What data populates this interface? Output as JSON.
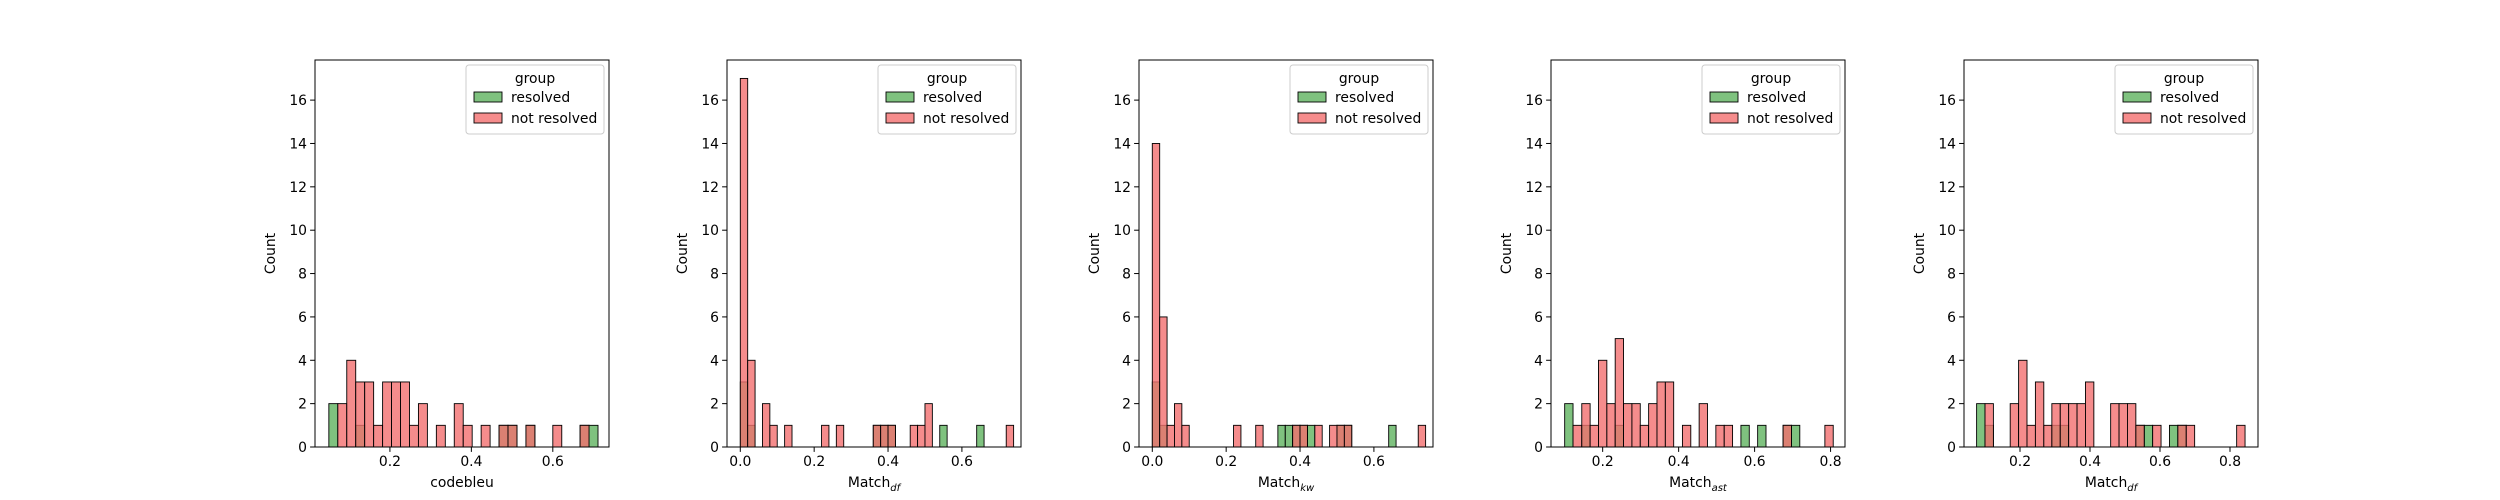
{
  "legend": {
    "title": "group",
    "entries": [
      {
        "name": "resolved",
        "color": "#5fb35f"
      },
      {
        "name": "not resolved",
        "color": "#f36f6f"
      }
    ]
  },
  "chart_data": [
    {
      "type": "bar",
      "xlabel": "codebleu",
      "xlabel_sub": "",
      "ylabel": "Count",
      "xlim": [
        0.016,
        0.738
      ],
      "ylim": [
        0,
        17.85
      ],
      "xticks": [
        0.2,
        0.4,
        0.6
      ],
      "yticks": [
        0,
        2,
        4,
        6,
        8,
        10,
        12,
        14,
        16
      ],
      "legend_position": "top-right",
      "series": [
        {
          "name": "resolved",
          "color": "#5fb35f",
          "bins": [
            [
              0.05,
              0.072,
              2
            ],
            [
              0.116,
              0.138,
              1
            ],
            [
              0.468,
              0.49,
              1
            ],
            [
              0.49,
              0.512,
              1
            ],
            [
              0.534,
              0.556,
              1
            ],
            [
              0.667,
              0.689,
              1
            ],
            [
              0.689,
              0.711,
              1
            ]
          ]
        },
        {
          "name": "not resolved",
          "color": "#f36f6f",
          "bins": [
            [
              0.072,
              0.094,
              2
            ],
            [
              0.094,
              0.116,
              4
            ],
            [
              0.116,
              0.138,
              3
            ],
            [
              0.138,
              0.16,
              3
            ],
            [
              0.16,
              0.182,
              1
            ],
            [
              0.182,
              0.204,
              3
            ],
            [
              0.204,
              0.226,
              3
            ],
            [
              0.226,
              0.248,
              3
            ],
            [
              0.248,
              0.27,
              1
            ],
            [
              0.27,
              0.292,
              2
            ],
            [
              0.314,
              0.336,
              1
            ],
            [
              0.358,
              0.38,
              2
            ],
            [
              0.38,
              0.402,
              1
            ],
            [
              0.424,
              0.446,
              1
            ],
            [
              0.468,
              0.49,
              1
            ],
            [
              0.49,
              0.512,
              1
            ],
            [
              0.534,
              0.556,
              1
            ],
            [
              0.6,
              0.622,
              1
            ],
            [
              0.667,
              0.689,
              1
            ]
          ]
        }
      ]
    },
    {
      "type": "bar",
      "xlabel": "Match",
      "xlabel_sub": "df",
      "ylabel": "Count",
      "xlim": [
        -0.036,
        0.76
      ],
      "ylim": [
        0,
        17.85
      ],
      "xticks": [
        0.0,
        0.2,
        0.4,
        0.6
      ],
      "yticks": [
        0,
        2,
        4,
        6,
        8,
        10,
        12,
        14,
        16
      ],
      "legend_position": "top-right",
      "series": [
        {
          "name": "resolved",
          "color": "#5fb35f",
          "bins": [
            [
              0.0,
              0.02,
              3
            ],
            [
              0.02,
              0.04,
              1
            ],
            [
              0.36,
              0.38,
              1
            ],
            [
              0.38,
              0.4,
              1
            ],
            [
              0.4,
              0.42,
              1
            ],
            [
              0.54,
              0.56,
              1
            ],
            [
              0.64,
              0.66,
              1
            ]
          ]
        },
        {
          "name": "not resolved",
          "color": "#f36f6f",
          "bins": [
            [
              0.0,
              0.02,
              17
            ],
            [
              0.02,
              0.04,
              4
            ],
            [
              0.06,
              0.08,
              2
            ],
            [
              0.08,
              0.1,
              1
            ],
            [
              0.12,
              0.14,
              1
            ],
            [
              0.22,
              0.24,
              1
            ],
            [
              0.26,
              0.28,
              1
            ],
            [
              0.36,
              0.38,
              1
            ],
            [
              0.38,
              0.4,
              1
            ],
            [
              0.4,
              0.42,
              1
            ],
            [
              0.46,
              0.48,
              1
            ],
            [
              0.48,
              0.5,
              1
            ],
            [
              0.5,
              0.52,
              2
            ],
            [
              0.72,
              0.74,
              1
            ]
          ]
        }
      ]
    },
    {
      "type": "bar",
      "xlabel": "Match",
      "xlabel_sub": "kw",
      "ylabel": "Count",
      "xlim": [
        -0.036,
        0.76
      ],
      "ylim": [
        0,
        17.85
      ],
      "xticks": [
        0.0,
        0.2,
        0.4,
        0.6
      ],
      "yticks": [
        0,
        2,
        4,
        6,
        8,
        10,
        12,
        14,
        16
      ],
      "legend_position": "top-right",
      "series": [
        {
          "name": "resolved",
          "color": "#5fb35f",
          "bins": [
            [
              0.0,
              0.02,
              3
            ],
            [
              0.02,
              0.04,
              1
            ],
            [
              0.34,
              0.36,
              1
            ],
            [
              0.36,
              0.38,
              1
            ],
            [
              0.38,
              0.4,
              1
            ],
            [
              0.4,
              0.42,
              1
            ],
            [
              0.42,
              0.44,
              1
            ],
            [
              0.5,
              0.52,
              1
            ],
            [
              0.52,
              0.54,
              1
            ],
            [
              0.64,
              0.66,
              1
            ]
          ]
        },
        {
          "name": "not resolved",
          "color": "#f36f6f",
          "bins": [
            [
              0.0,
              0.02,
              14
            ],
            [
              0.02,
              0.04,
              6
            ],
            [
              0.04,
              0.06,
              1
            ],
            [
              0.06,
              0.08,
              2
            ],
            [
              0.08,
              0.1,
              1
            ],
            [
              0.22,
              0.24,
              1
            ],
            [
              0.28,
              0.3,
              1
            ],
            [
              0.38,
              0.4,
              1
            ],
            [
              0.4,
              0.42,
              1
            ],
            [
              0.44,
              0.46,
              1
            ],
            [
              0.48,
              0.5,
              1
            ],
            [
              0.5,
              0.52,
              1
            ],
            [
              0.52,
              0.54,
              1
            ],
            [
              0.72,
              0.74,
              1
            ]
          ]
        }
      ]
    },
    {
      "type": "bar",
      "xlabel": "Match",
      "xlabel_sub": "ast",
      "ylabel": "Count",
      "xlim": [
        0.064,
        0.838
      ],
      "ylim": [
        0,
        17.85
      ],
      "xticks": [
        0.2,
        0.4,
        0.6,
        0.8
      ],
      "yticks": [
        0,
        2,
        4,
        6,
        8,
        10,
        12,
        14,
        16
      ],
      "legend_position": "top-right",
      "series": [
        {
          "name": "resolved",
          "color": "#5fb35f",
          "bins": [
            [
              0.1,
              0.122,
              2
            ],
            [
              0.145,
              0.167,
              1
            ],
            [
              0.233,
              0.255,
              1
            ],
            [
              0.564,
              0.586,
              1
            ],
            [
              0.608,
              0.63,
              1
            ],
            [
              0.675,
              0.697,
              1
            ],
            [
              0.697,
              0.719,
              1
            ]
          ]
        },
        {
          "name": "not resolved",
          "color": "#f36f6f",
          "bins": [
            [
              0.122,
              0.145,
              1
            ],
            [
              0.145,
              0.167,
              2
            ],
            [
              0.167,
              0.189,
              1
            ],
            [
              0.189,
              0.211,
              4
            ],
            [
              0.211,
              0.233,
              2
            ],
            [
              0.233,
              0.255,
              5
            ],
            [
              0.255,
              0.277,
              2
            ],
            [
              0.277,
              0.299,
              2
            ],
            [
              0.299,
              0.321,
              1
            ],
            [
              0.321,
              0.343,
              2
            ],
            [
              0.343,
              0.365,
              3
            ],
            [
              0.365,
              0.387,
              3
            ],
            [
              0.41,
              0.432,
              1
            ],
            [
              0.454,
              0.476,
              2
            ],
            [
              0.498,
              0.52,
              1
            ],
            [
              0.52,
              0.542,
              1
            ],
            [
              0.675,
              0.697,
              1
            ],
            [
              0.785,
              0.807,
              1
            ]
          ]
        }
      ]
    },
    {
      "type": "bar",
      "xlabel": "Match",
      "xlabel_sub": "df",
      "ylabel": "Count",
      "xlim": [
        0.04,
        0.88
      ],
      "ylim": [
        0,
        17.85
      ],
      "xticks": [
        0.2,
        0.4,
        0.6,
        0.8
      ],
      "yticks": [
        0,
        2,
        4,
        6,
        8,
        10,
        12,
        14,
        16
      ],
      "legend_position": "top-right",
      "series": [
        {
          "name": "resolved",
          "color": "#5fb35f",
          "bins": [
            [
              0.076,
              0.1,
              2
            ],
            [
              0.1,
              0.124,
              1
            ],
            [
              0.291,
              0.315,
              1
            ],
            [
              0.315,
              0.339,
              1
            ],
            [
              0.531,
              0.555,
              1
            ],
            [
              0.555,
              0.579,
              1
            ],
            [
              0.627,
              0.651,
              1
            ],
            [
              0.651,
              0.675,
              1
            ]
          ]
        },
        {
          "name": "not resolved",
          "color": "#f36f6f",
          "bins": [
            [
              0.1,
              0.124,
              2
            ],
            [
              0.172,
              0.196,
              2
            ],
            [
              0.196,
              0.22,
              4
            ],
            [
              0.22,
              0.244,
              1
            ],
            [
              0.244,
              0.268,
              3
            ],
            [
              0.268,
              0.291,
              1
            ],
            [
              0.291,
              0.315,
              2
            ],
            [
              0.315,
              0.339,
              2
            ],
            [
              0.339,
              0.363,
              2
            ],
            [
              0.363,
              0.387,
              2
            ],
            [
              0.387,
              0.411,
              3
            ],
            [
              0.459,
              0.483,
              2
            ],
            [
              0.483,
              0.507,
              2
            ],
            [
              0.507,
              0.531,
              2
            ],
            [
              0.531,
              0.555,
              1
            ],
            [
              0.579,
              0.603,
              1
            ],
            [
              0.651,
              0.675,
              1
            ],
            [
              0.675,
              0.699,
              1
            ],
            [
              0.819,
              0.843,
              1
            ]
          ]
        }
      ]
    }
  ]
}
